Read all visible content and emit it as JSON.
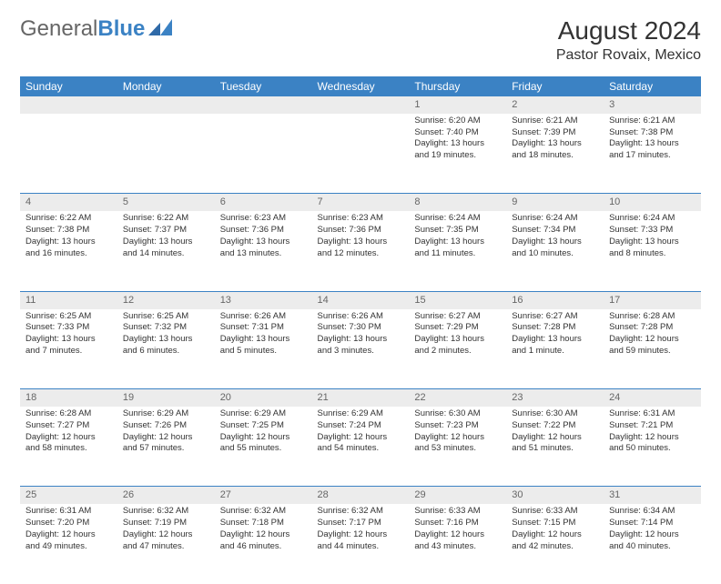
{
  "brand": {
    "first": "General",
    "second": "Blue"
  },
  "title": "August 2024",
  "location": "Pastor Rovaix, Mexico",
  "calendar": {
    "type": "table",
    "header_bg": "#3b82c4",
    "header_text_color": "#ffffff",
    "daynum_bg": "#ececec",
    "row_divider_color": "#3b82c4",
    "body_bg": "#ffffff",
    "text_color": "#333333",
    "font_family": "Arial",
    "header_fontsize": 12,
    "daynum_fontsize": 11,
    "cell_fontsize": 9.5,
    "columns": [
      "Sunday",
      "Monday",
      "Tuesday",
      "Wednesday",
      "Thursday",
      "Friday",
      "Saturday"
    ],
    "weeks": [
      [
        null,
        null,
        null,
        null,
        {
          "n": "1",
          "sr": "6:20 AM",
          "ss": "7:40 PM",
          "dl": "13 hours and 19 minutes."
        },
        {
          "n": "2",
          "sr": "6:21 AM",
          "ss": "7:39 PM",
          "dl": "13 hours and 18 minutes."
        },
        {
          "n": "3",
          "sr": "6:21 AM",
          "ss": "7:38 PM",
          "dl": "13 hours and 17 minutes."
        }
      ],
      [
        {
          "n": "4",
          "sr": "6:22 AM",
          "ss": "7:38 PM",
          "dl": "13 hours and 16 minutes."
        },
        {
          "n": "5",
          "sr": "6:22 AM",
          "ss": "7:37 PM",
          "dl": "13 hours and 14 minutes."
        },
        {
          "n": "6",
          "sr": "6:23 AM",
          "ss": "7:36 PM",
          "dl": "13 hours and 13 minutes."
        },
        {
          "n": "7",
          "sr": "6:23 AM",
          "ss": "7:36 PM",
          "dl": "13 hours and 12 minutes."
        },
        {
          "n": "8",
          "sr": "6:24 AM",
          "ss": "7:35 PM",
          "dl": "13 hours and 11 minutes."
        },
        {
          "n": "9",
          "sr": "6:24 AM",
          "ss": "7:34 PM",
          "dl": "13 hours and 10 minutes."
        },
        {
          "n": "10",
          "sr": "6:24 AM",
          "ss": "7:33 PM",
          "dl": "13 hours and 8 minutes."
        }
      ],
      [
        {
          "n": "11",
          "sr": "6:25 AM",
          "ss": "7:33 PM",
          "dl": "13 hours and 7 minutes."
        },
        {
          "n": "12",
          "sr": "6:25 AM",
          "ss": "7:32 PM",
          "dl": "13 hours and 6 minutes."
        },
        {
          "n": "13",
          "sr": "6:26 AM",
          "ss": "7:31 PM",
          "dl": "13 hours and 5 minutes."
        },
        {
          "n": "14",
          "sr": "6:26 AM",
          "ss": "7:30 PM",
          "dl": "13 hours and 3 minutes."
        },
        {
          "n": "15",
          "sr": "6:27 AM",
          "ss": "7:29 PM",
          "dl": "13 hours and 2 minutes."
        },
        {
          "n": "16",
          "sr": "6:27 AM",
          "ss": "7:28 PM",
          "dl": "13 hours and 1 minute."
        },
        {
          "n": "17",
          "sr": "6:28 AM",
          "ss": "7:28 PM",
          "dl": "12 hours and 59 minutes."
        }
      ],
      [
        {
          "n": "18",
          "sr": "6:28 AM",
          "ss": "7:27 PM",
          "dl": "12 hours and 58 minutes."
        },
        {
          "n": "19",
          "sr": "6:29 AM",
          "ss": "7:26 PM",
          "dl": "12 hours and 57 minutes."
        },
        {
          "n": "20",
          "sr": "6:29 AM",
          "ss": "7:25 PM",
          "dl": "12 hours and 55 minutes."
        },
        {
          "n": "21",
          "sr": "6:29 AM",
          "ss": "7:24 PM",
          "dl": "12 hours and 54 minutes."
        },
        {
          "n": "22",
          "sr": "6:30 AM",
          "ss": "7:23 PM",
          "dl": "12 hours and 53 minutes."
        },
        {
          "n": "23",
          "sr": "6:30 AM",
          "ss": "7:22 PM",
          "dl": "12 hours and 51 minutes."
        },
        {
          "n": "24",
          "sr": "6:31 AM",
          "ss": "7:21 PM",
          "dl": "12 hours and 50 minutes."
        }
      ],
      [
        {
          "n": "25",
          "sr": "6:31 AM",
          "ss": "7:20 PM",
          "dl": "12 hours and 49 minutes."
        },
        {
          "n": "26",
          "sr": "6:32 AM",
          "ss": "7:19 PM",
          "dl": "12 hours and 47 minutes."
        },
        {
          "n": "27",
          "sr": "6:32 AM",
          "ss": "7:18 PM",
          "dl": "12 hours and 46 minutes."
        },
        {
          "n": "28",
          "sr": "6:32 AM",
          "ss": "7:17 PM",
          "dl": "12 hours and 44 minutes."
        },
        {
          "n": "29",
          "sr": "6:33 AM",
          "ss": "7:16 PM",
          "dl": "12 hours and 43 minutes."
        },
        {
          "n": "30",
          "sr": "6:33 AM",
          "ss": "7:15 PM",
          "dl": "12 hours and 42 minutes."
        },
        {
          "n": "31",
          "sr": "6:34 AM",
          "ss": "7:14 PM",
          "dl": "12 hours and 40 minutes."
        }
      ]
    ],
    "labels": {
      "sunrise": "Sunrise:",
      "sunset": "Sunset:",
      "daylight": "Daylight:"
    }
  }
}
